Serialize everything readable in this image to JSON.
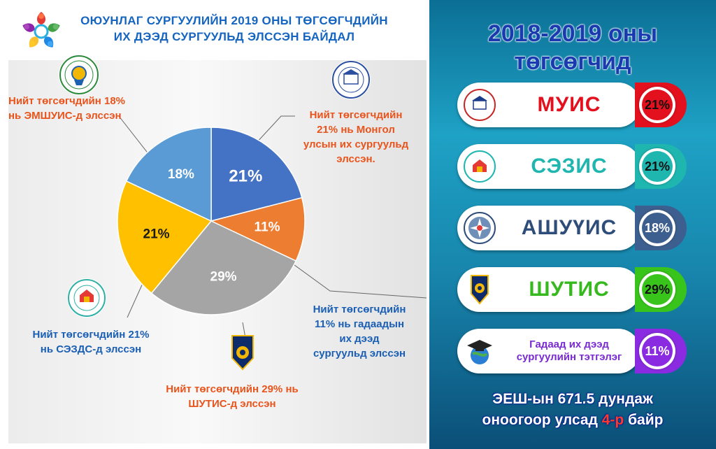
{
  "header": {
    "title_line1": "ОЮУНЛАГ СУРГУУЛИЙН 2019 ОНЫ ТӨГСӨГЧДИЙН",
    "title_line2": "ИХ ДЭЭД СУРГУУЛЬД ЭЛССЭН БАЙДАЛ"
  },
  "chart_data": {
    "type": "pie",
    "slices": [
      {
        "label": "21%",
        "value": 21,
        "color": "#4472c4"
      },
      {
        "label": "11%",
        "value": 11,
        "color": "#ed7d31"
      },
      {
        "label": "29%",
        "value": 29,
        "color": "#a5a5a5"
      },
      {
        "label": "21%",
        "value": 21,
        "color": "#ffc000"
      },
      {
        "label": "18%",
        "value": 18,
        "color": "#5b9bd5"
      }
    ]
  },
  "notes": {
    "emshuis_1": "Нийт төгсөгчдийн 18%",
    "emshuis_2": "нь ЭМШУИС-д элссэн",
    "muis_1": "Нийт төгсөгчдийн",
    "muis_2": "21% нь Монгол",
    "muis_3": "улсын их сургуульд",
    "muis_4": "элссэн.",
    "sezds_1": "Нийт төгсөгчдийн 21%",
    "sezds_2": "нь СЭЗДС-д элссэн",
    "abroad_1": "Нийт төгсөгчдийн",
    "abroad_2": "11% нь гадаадын",
    "abroad_3": "их дээд",
    "abroad_4": "сургуульд элссэн",
    "shutis_1": "Нийт төгсөгчдийн 29% нь",
    "shutis_2": "ШУТИС-д элссэн"
  },
  "right_panel": {
    "heading_1": "2018-2019 оны",
    "heading_2": "төгсөгчид",
    "rows": [
      {
        "name": "МУИС",
        "percent": "21%",
        "name_color": "#e3101e",
        "accent": "#e3101e"
      },
      {
        "name": "СЭЗИС",
        "percent": "21%",
        "name_color": "#1fb6b0",
        "accent": "#1fb6b0"
      },
      {
        "name": "АШУҮИС",
        "percent": "18%",
        "name_color": "#2f4d7a",
        "accent": "#3d5f8f"
      },
      {
        "name": "ШУТИС",
        "percent": "29%",
        "name_color": "#36b81f",
        "accent": "#39c41c"
      },
      {
        "name_1": "Гадаад их дээд",
        "name_2": "сургуулийн тэтгэлэг",
        "percent": "11%",
        "name_color": "#7a2ad1",
        "accent": "#8a2be2"
      }
    ],
    "footer_1": "ЭЕШ-ын 671.5 дундаж",
    "footer_2_a": "оноогоор улсад ",
    "footer_2_hl": "4-р",
    "footer_2_b": " байр"
  }
}
